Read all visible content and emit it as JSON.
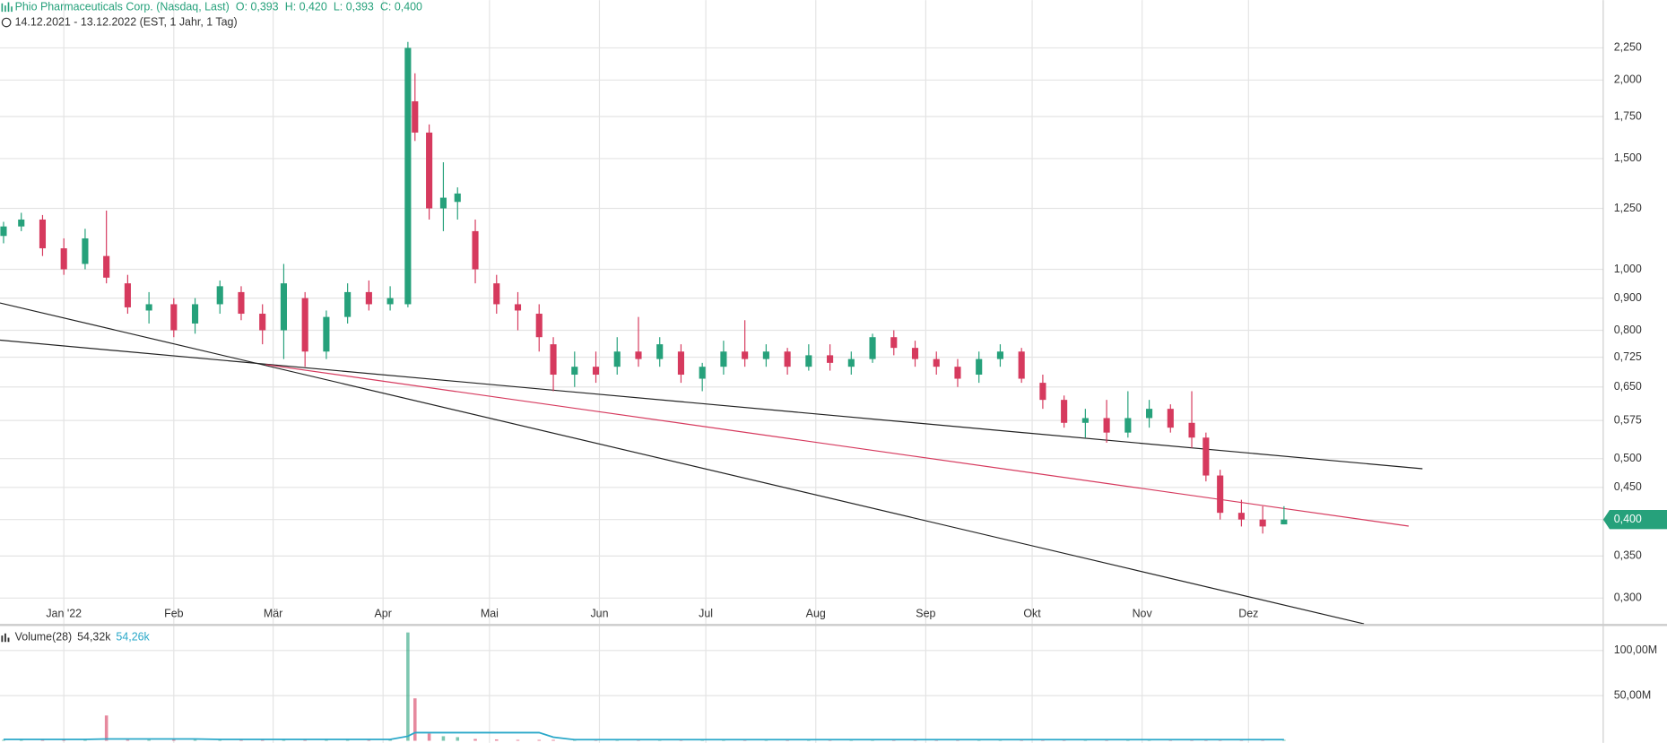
{
  "chart_data": [
    {
      "type": "candlestick",
      "title": "Phio Pharmaceuticals Corp. (Nasdaq, Last)",
      "ohlc_labels": [
        "O: 0,393",
        "H: 0,420",
        "L: 0,393",
        "C: 0,400"
      ],
      "subtitle": "14.12.2021 - 13.12.2022  (EST, 1 Jahr, 1 Tag)",
      "up_color": "#26a17b",
      "down_color": "#d63a5e",
      "log_scale": true,
      "grid": true,
      "xlim": [
        0,
        452
      ],
      "ylim": [
        0.273,
        2.68
      ],
      "xticks": [
        {
          "value": 18,
          "label": "Jan '22"
        },
        {
          "value": 49,
          "label": "Feb"
        },
        {
          "value": 77,
          "label": "Mär"
        },
        {
          "value": 108,
          "label": "Apr"
        },
        {
          "value": 138,
          "label": "Mai"
        },
        {
          "value": 169,
          "label": "Jun"
        },
        {
          "value": 199,
          "label": "Jul"
        },
        {
          "value": 230,
          "label": "Aug"
        },
        {
          "value": 261,
          "label": "Sep"
        },
        {
          "value": 291,
          "label": "Okt"
        },
        {
          "value": 322,
          "label": "Nov"
        },
        {
          "value": 352,
          "label": "Dez"
        }
      ],
      "yticks": [
        {
          "value": 0.3,
          "label": "0,300"
        },
        {
          "value": 0.35,
          "label": "0,350"
        },
        {
          "value": 0.4,
          "label": "0,400"
        },
        {
          "value": 0.45,
          "label": "0,450"
        },
        {
          "value": 0.5,
          "label": "0,500"
        },
        {
          "value": 0.575,
          "label": "0,575"
        },
        {
          "value": 0.65,
          "label": "0,650"
        },
        {
          "value": 0.725,
          "label": "0,725"
        },
        {
          "value": 0.8,
          "label": "0,800"
        },
        {
          "value": 0.9,
          "label": "0,900"
        },
        {
          "value": 1,
          "label": "1,000"
        },
        {
          "value": 1.25,
          "label": "1,250"
        },
        {
          "value": 1.5,
          "label": "1,500"
        },
        {
          "value": 1.75,
          "label": "1,750"
        },
        {
          "value": 2,
          "label": "2,000"
        },
        {
          "value": 2.25,
          "label": "2,250"
        }
      ],
      "last_price": {
        "value": 0.4,
        "label": "0,400"
      },
      "x": [
        1,
        6,
        12,
        18,
        24,
        30,
        36,
        42,
        49,
        55,
        62,
        68,
        74,
        80,
        86,
        92,
        98,
        104,
        110,
        115,
        117,
        121,
        125,
        129,
        134,
        140,
        146,
        152,
        156,
        162,
        168,
        174,
        180,
        186,
        192,
        198,
        204,
        210,
        216,
        222,
        228,
        234,
        240,
        246,
        252,
        258,
        264,
        270,
        276,
        282,
        288,
        294,
        300,
        306,
        312,
        318,
        324,
        330,
        336,
        340,
        344,
        350,
        356,
        362
      ],
      "open": [
        1.13,
        1.17,
        1.2,
        1.08,
        1.02,
        1.05,
        0.95,
        0.86,
        0.88,
        0.82,
        0.88,
        0.92,
        0.85,
        0.8,
        0.9,
        0.74,
        0.84,
        0.92,
        0.88,
        0.88,
        1.85,
        1.65,
        1.25,
        1.28,
        1.15,
        0.95,
        0.88,
        0.85,
        0.76,
        0.68,
        0.7,
        0.7,
        0.74,
        0.72,
        0.74,
        0.67,
        0.7,
        0.74,
        0.72,
        0.74,
        0.7,
        0.73,
        0.7,
        0.72,
        0.78,
        0.75,
        0.72,
        0.7,
        0.68,
        0.72,
        0.74,
        0.66,
        0.62,
        0.57,
        0.58,
        0.55,
        0.58,
        0.6,
        0.57,
        0.54,
        0.47,
        0.41,
        0.4,
        0.393
      ],
      "high": [
        1.19,
        1.23,
        1.22,
        1.12,
        1.16,
        1.24,
        0.98,
        0.92,
        0.9,
        0.9,
        0.96,
        0.94,
        0.88,
        1.02,
        0.92,
        0.86,
        0.95,
        0.96,
        0.94,
        2.3,
        2.05,
        1.7,
        1.48,
        1.35,
        1.2,
        0.98,
        0.92,
        0.88,
        0.78,
        0.74,
        0.74,
        0.78,
        0.84,
        0.78,
        0.76,
        0.71,
        0.77,
        0.83,
        0.76,
        0.75,
        0.76,
        0.76,
        0.74,
        0.79,
        0.8,
        0.77,
        0.74,
        0.72,
        0.74,
        0.76,
        0.75,
        0.68,
        0.63,
        0.6,
        0.62,
        0.64,
        0.62,
        0.61,
        0.64,
        0.55,
        0.48,
        0.43,
        0.42,
        0.42
      ],
      "low": [
        1.1,
        1.15,
        1.05,
        0.98,
        1,
        0.95,
        0.85,
        0.82,
        0.78,
        0.79,
        0.85,
        0.83,
        0.76,
        0.72,
        0.7,
        0.72,
        0.82,
        0.86,
        0.86,
        0.87,
        1.6,
        1.2,
        1.15,
        1.2,
        0.95,
        0.85,
        0.8,
        0.74,
        0.64,
        0.65,
        0.66,
        0.68,
        0.7,
        0.7,
        0.66,
        0.64,
        0.68,
        0.7,
        0.7,
        0.68,
        0.69,
        0.69,
        0.68,
        0.71,
        0.73,
        0.7,
        0.68,
        0.65,
        0.66,
        0.7,
        0.66,
        0.6,
        0.56,
        0.54,
        0.53,
        0.54,
        0.56,
        0.55,
        0.52,
        0.46,
        0.4,
        0.39,
        0.38,
        0.393
      ],
      "close": [
        1.17,
        1.2,
        1.08,
        1,
        1.12,
        0.97,
        0.87,
        0.88,
        0.8,
        0.88,
        0.94,
        0.85,
        0.8,
        0.95,
        0.74,
        0.84,
        0.92,
        0.88,
        0.9,
        2.25,
        1.65,
        1.25,
        1.3,
        1.32,
        1,
        0.88,
        0.86,
        0.78,
        0.68,
        0.7,
        0.68,
        0.74,
        0.72,
        0.76,
        0.68,
        0.7,
        0.74,
        0.72,
        0.74,
        0.7,
        0.73,
        0.71,
        0.72,
        0.78,
        0.75,
        0.72,
        0.7,
        0.67,
        0.72,
        0.74,
        0.67,
        0.62,
        0.57,
        0.58,
        0.55,
        0.58,
        0.6,
        0.56,
        0.54,
        0.47,
        0.41,
        0.4,
        0.39,
        0.4
      ]
    },
    {
      "type": "volume",
      "title": "Volume(28)",
      "legend_values": [
        "54,32k",
        "54,26k"
      ],
      "ma_color": "#2aa8c9",
      "ylim": [
        0,
        126000000
      ],
      "yticks": [
        {
          "value": 50000000,
          "label": "50,00M"
        },
        {
          "value": 100000000,
          "label": "100,00M"
        }
      ],
      "volume": [
        1000000,
        1000000,
        1000000,
        1000000,
        1000000,
        28000000,
        1000000,
        1000000,
        1000000,
        1000000,
        1000000,
        1000000,
        1000000,
        1000000,
        1000000,
        1000000,
        1000000,
        1000000,
        1000000,
        120000000,
        47000000,
        8000000,
        5000000,
        4000000,
        2000000,
        1500000,
        1000000,
        1000000,
        1000000,
        1000000,
        1000000,
        1000000,
        1000000,
        1000000,
        1000000,
        1000000,
        1000000,
        1000000,
        1000000,
        1000000,
        1000000,
        1000000,
        1000000,
        1000000,
        1000000,
        1000000,
        1000000,
        1000000,
        1000000,
        1000000,
        1000000,
        1000000,
        1000000,
        1000000,
        1000000,
        1000000,
        1000000,
        1000000,
        1000000,
        1000000,
        1000000,
        1000000,
        1000000,
        1000000
      ],
      "volume_ma": [
        1500000,
        1500000,
        1500000,
        1500000,
        1500000,
        2000000,
        2000000,
        2000000,
        2000000,
        2000000,
        1500000,
        1500000,
        1500000,
        1500000,
        1500000,
        1500000,
        1500000,
        1500000,
        1500000,
        5000000,
        9000000,
        9000000,
        9000000,
        9000000,
        9000000,
        9000000,
        9000000,
        9000000,
        4000000,
        1200000,
        1200000,
        1200000,
        1200000,
        1200000,
        1200000,
        1200000,
        1200000,
        1200000,
        1200000,
        1200000,
        1200000,
        1200000,
        1200000,
        1200000,
        1200000,
        1200000,
        1200000,
        1200000,
        1200000,
        1200000,
        1200000,
        1200000,
        1200000,
        1200000,
        1200000,
        1200000,
        1200000,
        1200000,
        1200000,
        1200000,
        1200000,
        1200000,
        1200000,
        1200000
      ]
    }
  ]
}
